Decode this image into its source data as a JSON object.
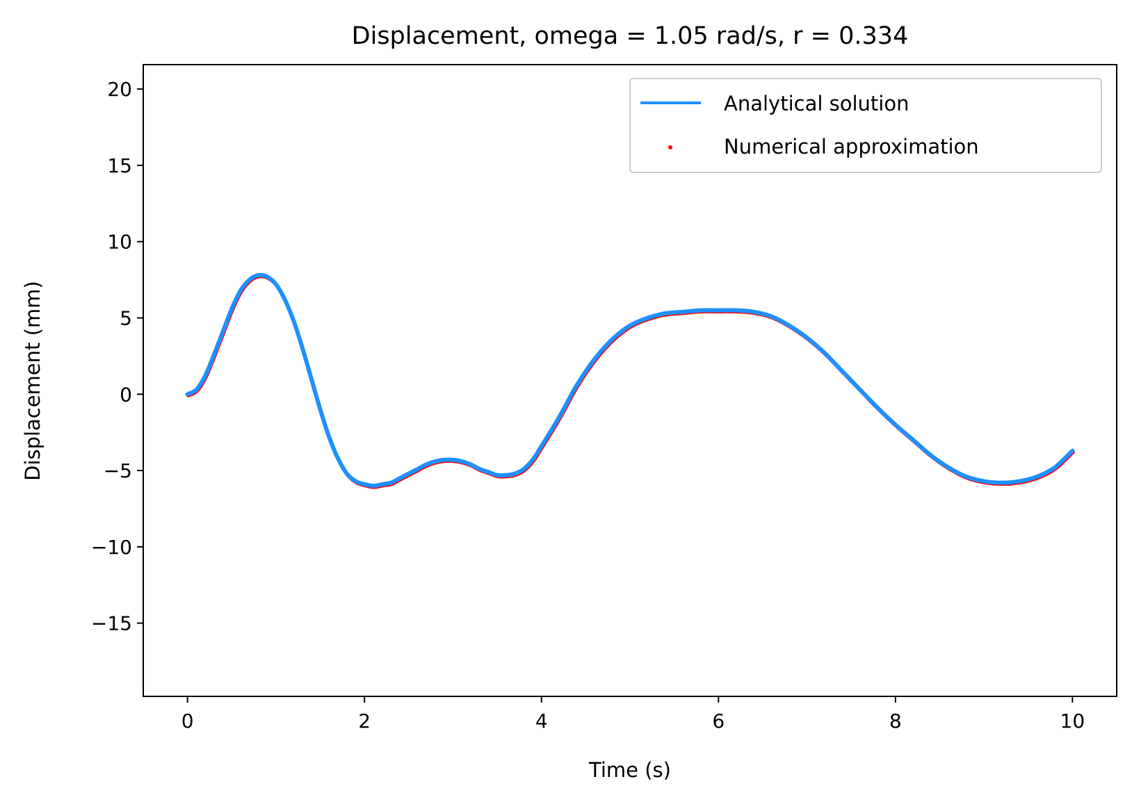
{
  "chart_data": {
    "type": "line",
    "title": "Displacement, omega = 1.05 rad/s, r = 0.334",
    "xlabel": "Time (s)",
    "ylabel": "Displacement (mm)",
    "xlim": [
      -0.5,
      10.5
    ],
    "ylim": [
      -19.8,
      21.6
    ],
    "xticks": [
      0,
      2,
      4,
      6,
      8,
      10
    ],
    "xtick_labels": [
      "0",
      "2",
      "4",
      "6",
      "8",
      "10"
    ],
    "yticks": [
      -15,
      -10,
      -5,
      0,
      5,
      10,
      15,
      20
    ],
    "ytick_labels": [
      "−15",
      "−10",
      "−5",
      "0",
      "5",
      "10",
      "15",
      "20"
    ],
    "grid": false,
    "legend_position": "top-right",
    "series": [
      {
        "name": "Analytical solution",
        "style": "line",
        "color": "#1e90ff",
        "x": [
          0,
          0.1,
          0.2,
          0.3,
          0.4,
          0.5,
          0.6,
          0.7,
          0.8,
          0.9,
          1.0,
          1.1,
          1.2,
          1.3,
          1.4,
          1.5,
          1.6,
          1.7,
          1.8,
          1.9,
          2.0,
          2.1,
          2.2,
          2.3,
          2.4,
          2.5,
          2.6,
          2.7,
          2.8,
          2.9,
          3.0,
          3.1,
          3.2,
          3.3,
          3.4,
          3.5,
          3.6,
          3.7,
          3.8,
          3.9,
          4.0,
          4.2,
          4.4,
          4.6,
          4.8,
          5.0,
          5.2,
          5.4,
          5.6,
          5.8,
          6.0,
          6.2,
          6.4,
          6.6,
          6.8,
          7.0,
          7.2,
          7.4,
          7.6,
          7.8,
          8.0,
          8.2,
          8.4,
          8.6,
          8.8,
          9.0,
          9.2,
          9.4,
          9.6,
          9.8,
          10.0
        ],
        "y": [
          0,
          0.3,
          1.2,
          2.6,
          4.1,
          5.6,
          6.8,
          7.5,
          7.8,
          7.7,
          7.2,
          6.2,
          4.8,
          3.0,
          1.0,
          -1.0,
          -2.8,
          -4.2,
          -5.2,
          -5.7,
          -5.9,
          -6.0,
          -5.9,
          -5.8,
          -5.5,
          -5.2,
          -4.9,
          -4.6,
          -4.4,
          -4.3,
          -4.3,
          -4.4,
          -4.6,
          -4.9,
          -5.1,
          -5.3,
          -5.3,
          -5.2,
          -4.9,
          -4.3,
          -3.4,
          -1.5,
          0.6,
          2.3,
          3.6,
          4.5,
          5.0,
          5.3,
          5.4,
          5.5,
          5.5,
          5.5,
          5.4,
          5.1,
          4.5,
          3.7,
          2.7,
          1.5,
          0.3,
          -0.9,
          -2.0,
          -3.0,
          -4.0,
          -4.8,
          -5.4,
          -5.7,
          -5.8,
          -5.7,
          -5.4,
          -4.8,
          -3.7
        ]
      },
      {
        "name": "Numerical approximation",
        "style": "scatter",
        "color": "#ff0000"
      }
    ]
  }
}
